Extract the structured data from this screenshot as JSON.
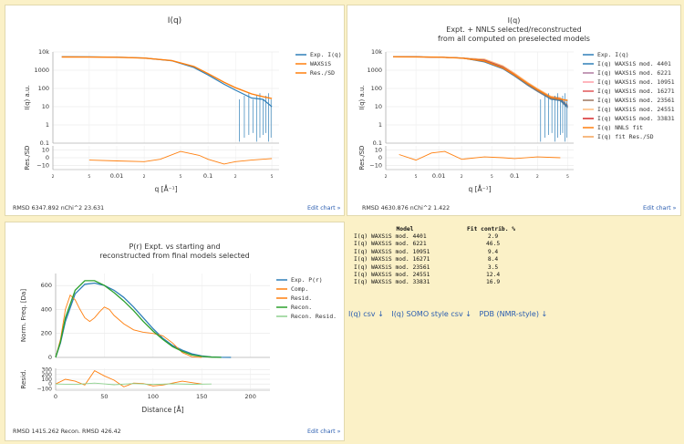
{
  "panel1": {
    "title": "I(q)",
    "footer": "RMSD 6347.892   nChi^2 23.631",
    "edit": "Edit chart »"
  },
  "panel2": {
    "title": "I(q)",
    "subtitle": "Expt. + NNLS selected/reconstructed",
    "subtitle2": "from all computed on preselected models",
    "footer": "RMSD 4630.876   nChi^2 1.422",
    "edit": "Edit chart »"
  },
  "panel3": {
    "title": "P(r) Expt. vs starting and",
    "subtitle": "reconstructed from final models selected",
    "footer": "RMSD 1415.262   Recon. RMSD 426.42",
    "edit": "Edit chart »"
  },
  "colors": {
    "blue": "#2f7fb8",
    "orange": "#ff7f0e",
    "green": "#2ca02c",
    "lightgreen": "#8fd18f",
    "purple": "#7b3294",
    "accent": "#2a5db0"
  },
  "chart_data": [
    {
      "type": "line",
      "title": "I(q)",
      "xlabel": "q [Å⁻¹]",
      "ylabel": "I(q) a.u.",
      "ylabel2": "Res./SD",
      "xscale": "log",
      "yscale": "log",
      "xlim": [
        0.002,
        0.6
      ],
      "ylim": [
        0.1,
        10000
      ],
      "y_ticks": [
        "10k",
        "1000",
        "100",
        "10",
        "1",
        "0.1"
      ],
      "x_ticks": [
        "2",
        "5",
        "0.01",
        "2",
        "5",
        "0.1",
        "2",
        "5"
      ],
      "res_ticks": [
        "10",
        "0",
        "−10"
      ],
      "legend": [
        "Exp. I(q)",
        "WAXSiS",
        "Res./SD"
      ],
      "series": [
        {
          "name": "Exp. I(q)",
          "q": [
            0.0025,
            0.005,
            0.01,
            0.02,
            0.04,
            0.07,
            0.1,
            0.15,
            0.2,
            0.3,
            0.4,
            0.5
          ],
          "I": [
            5500,
            5400,
            5200,
            4700,
            3300,
            1400,
            550,
            170,
            80,
            30,
            25,
            10
          ]
        },
        {
          "name": "WAXSiS",
          "q": [
            0.0025,
            0.005,
            0.01,
            0.02,
            0.04,
            0.07,
            0.1,
            0.15,
            0.2,
            0.3,
            0.4,
            0.5
          ],
          "I": [
            5300,
            5250,
            5100,
            4600,
            3400,
            1600,
            650,
            220,
            110,
            50,
            35,
            28
          ]
        },
        {
          "name": "Res./SD",
          "q": [
            0.005,
            0.01,
            0.02,
            0.03,
            0.05,
            0.08,
            0.1,
            0.15,
            0.2,
            0.3,
            0.5
          ],
          "res": [
            -3,
            -4,
            -5,
            -2,
            8,
            3,
            -2,
            -8,
            -5,
            -3,
            -1
          ]
        }
      ]
    },
    {
      "type": "line",
      "title": "I(q)",
      "xlabel": "q [Å⁻¹]",
      "ylabel": "I(q) a.u.",
      "ylabel2": "Res./SD",
      "xscale": "log",
      "yscale": "log",
      "xlim": [
        0.002,
        0.6
      ],
      "ylim": [
        0.1,
        10000
      ],
      "y_ticks": [
        "10k",
        "1000",
        "100",
        "10",
        "1",
        "0.1"
      ],
      "x_ticks": [
        "2",
        "5",
        "0.01",
        "2",
        "5",
        "0.1",
        "2",
        "5"
      ],
      "res_ticks": [
        "10",
        "0",
        "−10"
      ],
      "legend": [
        "Exp. I(q)",
        "I(q) WAXSiS mod. 4401",
        "I(q) WAXSiS mod. 6221",
        "I(q) WAXSiS mod. 10951",
        "I(q) WAXSiS mod. 16271",
        "I(q) WAXSiS mod. 23561",
        "I(q) WAXSiS mod. 24551",
        "I(q) WAXSiS mod. 33831",
        "I(q) NNLS fit",
        "I(q) fit Res./SD"
      ],
      "legend_colors": [
        "#2f7fb8",
        "#2f7fb8",
        "#b07aa1",
        "#ff9da7",
        "#e15759",
        "#9c755f",
        "#ffbe7d",
        "#d62728",
        "#ff7f0e",
        "#f4a259"
      ],
      "series": [
        {
          "name": "Exp. I(q)",
          "q": [
            0.0025,
            0.005,
            0.01,
            0.02,
            0.04,
            0.07,
            0.1,
            0.15,
            0.2,
            0.3,
            0.4,
            0.5
          ],
          "I": [
            5500,
            5400,
            5200,
            4700,
            3300,
            1400,
            550,
            170,
            80,
            30,
            25,
            10
          ]
        },
        {
          "name": "I(q) NNLS fit",
          "q": [
            0.0025,
            0.005,
            0.01,
            0.02,
            0.04,
            0.07,
            0.1,
            0.15,
            0.2,
            0.3,
            0.4,
            0.5
          ],
          "I": [
            5450,
            5380,
            5180,
            4650,
            3250,
            1350,
            560,
            180,
            85,
            32,
            26,
            22
          ]
        },
        {
          "name": "I(q) fit Res./SD",
          "q": [
            0.003,
            0.005,
            0.008,
            0.012,
            0.02,
            0.04,
            0.07,
            0.1,
            0.2,
            0.4
          ],
          "res": [
            4,
            -3,
            6,
            8,
            -2,
            1,
            0,
            -1,
            1,
            0
          ]
        }
      ]
    },
    {
      "type": "line",
      "title": "P(r) Expt. vs starting and reconstructed from final models selected",
      "xlabel": "Distance [Å]",
      "ylabel": "Norm. Freq. [Da]",
      "ylabel2": "Resid.",
      "xlim": [
        0,
        220
      ],
      "ylim": [
        0,
        700
      ],
      "y_ticks": [
        "600",
        "400",
        "200",
        "0"
      ],
      "x_ticks": [
        "0",
        "50",
        "100",
        "150",
        "200"
      ],
      "res_ticks": [
        "300",
        "200",
        "100",
        "0",
        "−100"
      ],
      "res_ylim": [
        -130,
        330
      ],
      "legend": [
        "Exp. P(r)",
        "Comp.",
        "Resid.",
        "Recon.",
        "Recon. Resid."
      ],
      "series": [
        {
          "name": "Exp. P(r)",
          "x": [
            0,
            5,
            10,
            20,
            30,
            40,
            50,
            60,
            70,
            80,
            90,
            100,
            110,
            120,
            130,
            140,
            150,
            160,
            170,
            180
          ],
          "y": [
            0,
            120,
            300,
            530,
            610,
            620,
            600,
            560,
            500,
            420,
            330,
            240,
            160,
            100,
            60,
            30,
            12,
            4,
            1,
            0
          ]
        },
        {
          "name": "Comp.",
          "x": [
            0,
            5,
            10,
            15,
            20,
            25,
            30,
            35,
            40,
            45,
            50,
            55,
            60,
            70,
            80,
            90,
            100,
            110,
            120,
            130,
            140,
            150
          ],
          "y": [
            0,
            150,
            400,
            520,
            480,
            400,
            330,
            300,
            330,
            380,
            420,
            400,
            350,
            280,
            230,
            210,
            200,
            180,
            120,
            40,
            5,
            0
          ]
        },
        {
          "name": "Resid.",
          "x": [
            0,
            10,
            20,
            30,
            40,
            50,
            60,
            70,
            80,
            90,
            100,
            110,
            120,
            130,
            140,
            150
          ],
          "y": [
            0,
            100,
            60,
            -20,
            280,
            170,
            80,
            -60,
            20,
            10,
            -40,
            -20,
            20,
            60,
            30,
            0
          ]
        },
        {
          "name": "Recon.",
          "x": [
            0,
            5,
            10,
            20,
            30,
            40,
            50,
            60,
            70,
            80,
            90,
            100,
            110,
            120,
            130,
            140,
            150,
            160,
            170
          ],
          "y": [
            0,
            130,
            330,
            560,
            640,
            640,
            600,
            540,
            470,
            390,
            300,
            220,
            150,
            90,
            50,
            20,
            8,
            2,
            0
          ]
        },
        {
          "name": "Recon. Resid.",
          "x": [
            0,
            20,
            40,
            60,
            80,
            100,
            120,
            140,
            160
          ],
          "y": [
            0,
            -10,
            20,
            -15,
            10,
            -10,
            5,
            -5,
            0
          ]
        }
      ]
    }
  ],
  "fit_table": {
    "headers": [
      "Model",
      "Fit contrib. %"
    ],
    "rows": [
      [
        "I(q) WAXSiS mod. 4401",
        "2.9"
      ],
      [
        "I(q) WAXSiS mod. 6221",
        "46.5"
      ],
      [
        "I(q) WAXSiS mod. 10951",
        "9.4"
      ],
      [
        "I(q) WAXSiS mod. 16271",
        "8.4"
      ],
      [
        "I(q) WAXSiS mod. 23561",
        "3.5"
      ],
      [
        "I(q) WAXSiS mod. 24551",
        "12.4"
      ],
      [
        "I(q) WAXSiS mod. 33831",
        "16.9"
      ]
    ]
  },
  "downloads": [
    "I(q) csv ↓",
    "I(q) SOMO style csv ↓",
    "PDB (NMR-style) ↓"
  ]
}
